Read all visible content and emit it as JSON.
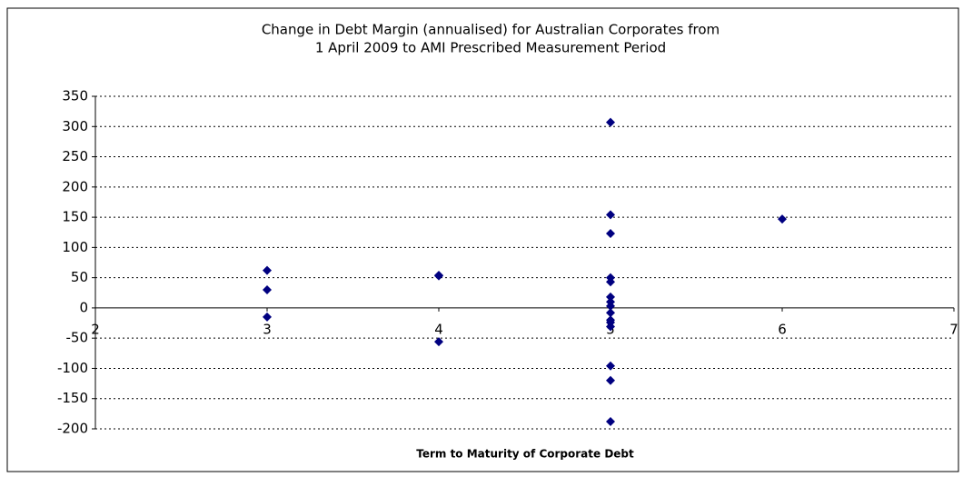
{
  "chart_data": {
    "type": "scatter",
    "title": [
      "Change in Debt Margin (annualised) for Australian Corporates from",
      "1 April 2009 to AMI Prescribed Measurement Period"
    ],
    "xlabel": "Term to Maturity of Corporate Debt",
    "series": [
      {
        "color": "#000080",
        "x": [
          3,
          3,
          3,
          4,
          4,
          4,
          5,
          5,
          5,
          5,
          5,
          5,
          5,
          5,
          5,
          5,
          5,
          5,
          5,
          5,
          5,
          6
        ],
        "values": [
          62,
          30,
          -15,
          53,
          54,
          -56,
          307,
          154,
          123,
          50,
          43,
          18,
          10,
          3,
          -8,
          -20,
          -24,
          -31,
          -96,
          -120,
          -188,
          147
        ]
      }
    ],
    "xlim": [
      2,
      7
    ],
    "xticks": [
      2,
      3,
      4,
      5,
      6,
      7
    ],
    "ylim": [
      -200,
      350
    ],
    "yticks": [
      -200,
      -150,
      -100,
      -50,
      0,
      50,
      100,
      150,
      200,
      250,
      300,
      350
    ],
    "grid": true
  }
}
